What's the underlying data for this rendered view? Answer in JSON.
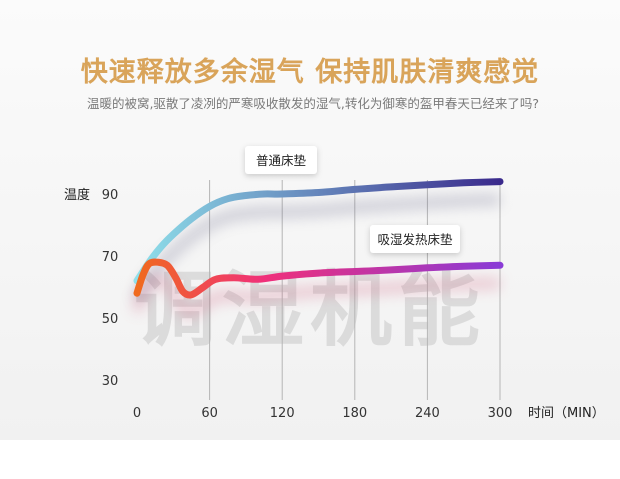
{
  "title": "快速释放多余湿气 保持肌肤清爽感觉",
  "subtitle": "温暖的被窝,驱散了凌冽的严寒吸收散发的湿气,转化为御寒的盔甲春天已经来了吗?",
  "watermark": "调湿机能",
  "colors": {
    "title": "#d9a45a",
    "series_normal_start": "#8fe0ea",
    "series_normal_end": "#3a2a8c",
    "series_humid_start": "#f06a1e",
    "series_humid_end": "#8a3bd6"
  },
  "chart_data": {
    "type": "line",
    "ylabel": "温度",
    "xlabel": "时间（MIN）",
    "x_ticks": [
      0,
      60,
      120,
      180,
      240,
      300
    ],
    "y_ticks": [
      30,
      50,
      70,
      90
    ],
    "xlim": [
      0,
      300
    ],
    "ylim": [
      30,
      90
    ],
    "grid": "vertical",
    "series": [
      {
        "name": "普通床垫",
        "x": [
          0,
          10,
          20,
          30,
          45,
          60,
          75,
          90,
          105,
          120,
          150,
          180,
          210,
          240,
          270,
          300
        ],
        "y": [
          62,
          68,
          73,
          77,
          82,
          86,
          88.5,
          89.5,
          90,
          90,
          90.5,
          91.5,
          92.3,
          93,
          93.6,
          94
        ]
      },
      {
        "name": "吸湿发热床垫",
        "x": [
          0,
          5,
          10,
          17,
          25,
          32,
          38,
          45,
          55,
          65,
          80,
          100,
          120,
          150,
          180,
          210,
          240,
          270,
          300
        ],
        "y": [
          58,
          64,
          67.5,
          68,
          67,
          63,
          58.5,
          57.5,
          60,
          62.5,
          63,
          62.5,
          63.5,
          64.5,
          65,
          65.5,
          66.2,
          66.7,
          67
        ]
      }
    ]
  }
}
